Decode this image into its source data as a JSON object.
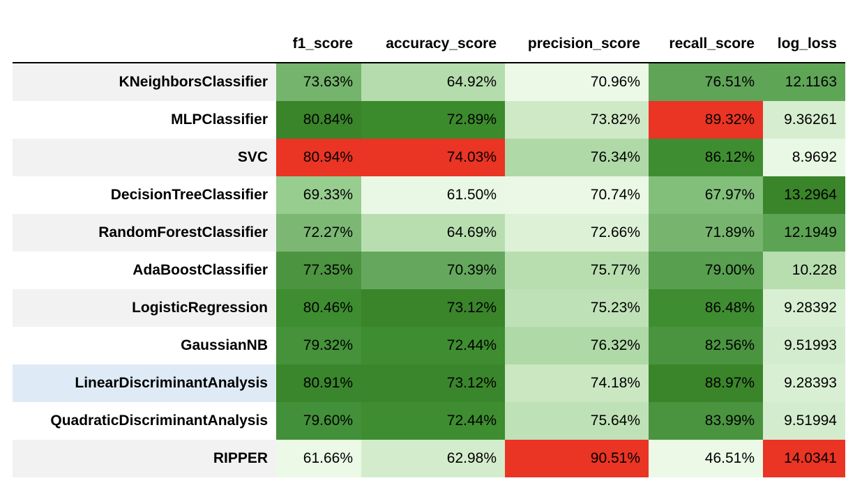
{
  "table": {
    "columns": [
      "",
      "f1_score",
      "accuracy_score",
      "precision_score",
      "recall_score",
      "log_loss"
    ],
    "rows": [
      {
        "name": "KNeighborsClassifier",
        "cells": [
          {
            "text": "73.63%",
            "bg": "#74b46c"
          },
          {
            "text": "64.92%",
            "bg": "#b4dcac"
          },
          {
            "text": "70.96%",
            "bg": "#ebf9e6"
          },
          {
            "text": "76.51%",
            "bg": "#5fa457"
          },
          {
            "text": "12.1163",
            "bg": "#5ea656"
          }
        ]
      },
      {
        "name": "MLPClassifier",
        "cells": [
          {
            "text": "80.84%",
            "bg": "#3a842a"
          },
          {
            "text": "72.89%",
            "bg": "#3b8a2c"
          },
          {
            "text": "73.82%",
            "bg": "#cfe9c7"
          },
          {
            "text": "89.32%",
            "bg": "#ea3424"
          },
          {
            "text": "9.36261",
            "bg": "#d6eecf"
          }
        ]
      },
      {
        "name": "SVC",
        "cells": [
          {
            "text": "80.94%",
            "bg": "#ea3424"
          },
          {
            "text": "74.03%",
            "bg": "#ea3424"
          },
          {
            "text": "76.34%",
            "bg": "#b0d9a8"
          },
          {
            "text": "86.12%",
            "bg": "#3f8d31"
          },
          {
            "text": "8.9692",
            "bg": "#e9f8e4"
          }
        ]
      },
      {
        "name": "DecisionTreeClassifier",
        "cells": [
          {
            "text": "69.33%",
            "bg": "#98cd90"
          },
          {
            "text": "61.50%",
            "bg": "#e9f8e4"
          },
          {
            "text": "70.74%",
            "bg": "#eaf8e5"
          },
          {
            "text": "67.97%",
            "bg": "#82bf7a"
          },
          {
            "text": "13.2964",
            "bg": "#3a842a"
          }
        ]
      },
      {
        "name": "RandomForestClassifier",
        "cells": [
          {
            "text": "72.27%",
            "bg": "#7cb874"
          },
          {
            "text": "64.69%",
            "bg": "#b8deb0"
          },
          {
            "text": "72.66%",
            "bg": "#ddf1d7"
          },
          {
            "text": "71.89%",
            "bg": "#77b56f"
          },
          {
            "text": "12.1949",
            "bg": "#5ca454"
          }
        ]
      },
      {
        "name": "AdaBoostClassifier",
        "cells": [
          {
            "text": "77.35%",
            "bg": "#4c9440"
          },
          {
            "text": "70.39%",
            "bg": "#65a85d"
          },
          {
            "text": "75.77%",
            "bg": "#b8deb0"
          },
          {
            "text": "79.00%",
            "bg": "#589f4f"
          },
          {
            "text": "10.228",
            "bg": "#b8deb0"
          }
        ]
      },
      {
        "name": "LogisticRegression",
        "cells": [
          {
            "text": "80.46%",
            "bg": "#3e8d30"
          },
          {
            "text": "73.12%",
            "bg": "#3a842a"
          },
          {
            "text": "75.23%",
            "bg": "#bfe1b7"
          },
          {
            "text": "86.48%",
            "bg": "#3f8d31"
          },
          {
            "text": "9.28392",
            "bg": "#d9efd3"
          }
        ]
      },
      {
        "name": "GaussianNB",
        "cells": [
          {
            "text": "79.32%",
            "bg": "#45923a"
          },
          {
            "text": "72.44%",
            "bg": "#3e8d30"
          },
          {
            "text": "76.32%",
            "bg": "#b0d9a8"
          },
          {
            "text": "82.56%",
            "bg": "#4a9440"
          },
          {
            "text": "9.51993",
            "bg": "#d4ecce"
          }
        ]
      },
      {
        "name": "LinearDiscriminantAnalysis",
        "cells": [
          {
            "text": "80.91%",
            "bg": "#3a862c"
          },
          {
            "text": "73.12%",
            "bg": "#3a862c"
          },
          {
            "text": "74.18%",
            "bg": "#cae7c2"
          },
          {
            "text": "88.97%",
            "bg": "#3a842a"
          },
          {
            "text": "9.28393",
            "bg": "#d9efd3"
          }
        ]
      },
      {
        "name": "QuadraticDiscriminantAnalysis",
        "cells": [
          {
            "text": "79.60%",
            "bg": "#43903a"
          },
          {
            "text": "72.44%",
            "bg": "#3e8d30"
          },
          {
            "text": "75.64%",
            "bg": "#bfe1b7"
          },
          {
            "text": "83.99%",
            "bg": "#4a9440"
          },
          {
            "text": "9.51994",
            "bg": "#d4ecce"
          }
        ]
      },
      {
        "name": "RIPPER",
        "cells": [
          {
            "text": "61.66%",
            "bg": "#ebf9e6"
          },
          {
            "text": "62.98%",
            "bg": "#d3edcc"
          },
          {
            "text": "90.51%",
            "bg": "#ea3424"
          },
          {
            "text": "46.51%",
            "bg": "#ebf9e6"
          },
          {
            "text": "14.0341",
            "bg": "#ea3424"
          }
        ]
      }
    ],
    "hover_row_index": 8
  }
}
